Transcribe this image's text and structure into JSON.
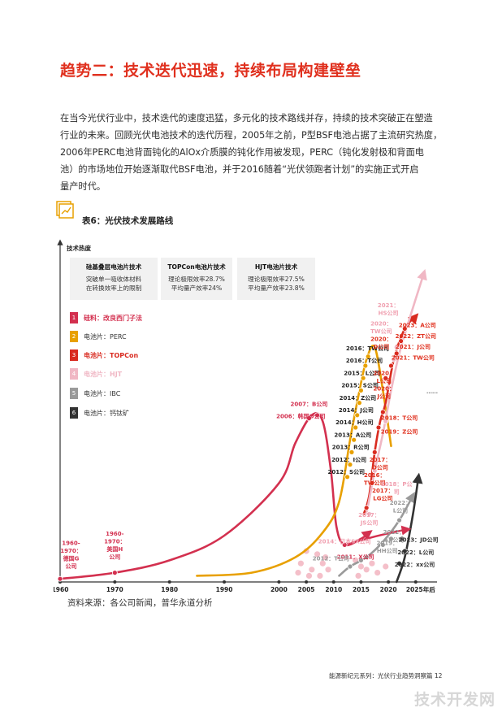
{
  "title": "趋势二：技术迭代迅速，持续布局构建壁垒",
  "paragraph_lines": [
    "在当今光伏行业中，技术迭代的速度迅猛，多元化的技术路线并存，持续的技术突破正在塑造",
    "行业的未来。回顾光伏电池技术的迭代历程，2005年之前，P型BSF电池占据了主流研究热度，",
    "2006年PERC电池背面钝化的AlOx介质膜的钝化作用被发现，PERC（钝化发射极和背面电",
    "池）的市场地位开始逐渐取代BSF电池，并于2016随着“光伏领跑者计划”的实施正式开启",
    "量产时代。"
  ],
  "figure_label": "表6：光伏技术发展路线",
  "source": "资料来源：各公司新闻，普华永道分析",
  "footer": "能源新纪元系列：光伏行业趋势洞察篇   12",
  "watermark": "技术开发网",
  "colors": {
    "accent": "#e0301e",
    "silicon": "#d3304f",
    "perc": "#e8a000",
    "topcon": "#d92b20",
    "hjt": "#f0b7c4",
    "ibc": "#9a9a9a",
    "perovskite": "#333333"
  },
  "chart_data": {
    "type": "line",
    "ylabel": "技术热度",
    "xlabel": "",
    "x_ticks": [
      "1960",
      "1970",
      "1980",
      "1990",
      "2000",
      "2005",
      "2010",
      "2015",
      "2020",
      "2025年后"
    ],
    "x_tick_values": [
      1960,
      1970,
      1980,
      1990,
      2000,
      2005,
      2010,
      2015,
      2020,
      2025
    ],
    "xlim": [
      1960,
      2028
    ],
    "ylim": [
      0,
      100
    ],
    "info_boxes": [
      {
        "header": "硅基叠层电池片技术",
        "lines": [
          "突破单一吸收体材料",
          "在转换效率上的限制"
        ]
      },
      {
        "header": "TOPCon电池片技术",
        "lines": [
          "理论极限效率28.7%",
          "平均量产效率24%"
        ]
      },
      {
        "header": "HJT电池片技术",
        "lines": [
          "理论极限效率27.5%",
          "平均量产效率23.8%"
        ]
      }
    ],
    "legend": [
      {
        "num": "1",
        "label": "硅料：改良西门子法",
        "color": "#d3304f",
        "highlight": true
      },
      {
        "num": "2",
        "label": "电池片：PERC",
        "color": "#e8a000",
        "highlight": false
      },
      {
        "num": "3",
        "label": "电池片：TOPCon",
        "color": "#d92b20",
        "highlight": true
      },
      {
        "num": "4",
        "label": "电池片：HJT",
        "color": "#f0b7c4",
        "highlight": true
      },
      {
        "num": "5",
        "label": "电池片：IBC",
        "color": "#9a9a9a",
        "highlight": false
      },
      {
        "num": "6",
        "label": "电池片：钙钛矿",
        "color": "#333333",
        "highlight": false
      }
    ],
    "series": [
      {
        "name": "硅料：改良西门子法",
        "color": "#d3304f",
        "x": [
          1960,
          1970,
          1980,
          1990,
          2000,
          2003,
          2006,
          2008,
          2009.5,
          2010.5,
          2012,
          2015,
          2016.5
        ],
        "y": [
          1,
          3,
          7,
          15,
          32,
          45,
          54,
          52,
          36,
          18,
          12,
          14,
          16
        ]
      },
      {
        "name": "电池片：PERC",
        "color": "#e8a000",
        "x": [
          1985,
          1995,
          2003,
          2008,
          2011,
          2013,
          2014.5,
          2016,
          2017.5,
          2019,
          2020.5
        ],
        "y": [
          2,
          3,
          8,
          16,
          26,
          46,
          60,
          72,
          76,
          62,
          44
        ]
      },
      {
        "name": "电池片：TOPCon",
        "color": "#d92b20",
        "x": [
          2015.5,
          2016.5,
          2017.5,
          2018.5,
          2019.5,
          2021,
          2023,
          2025
        ],
        "y": [
          22,
          28,
          42,
          52,
          58,
          72,
          82,
          86
        ]
      },
      {
        "name": "电池片：HJT",
        "color": "#f0b7c4",
        "x": [
          2016,
          2017.5,
          2019,
          2020.5,
          2022,
          2024,
          2026.5
        ],
        "y": [
          22,
          36,
          48,
          62,
          74,
          86,
          100
        ]
      },
      {
        "name": "电池片：IBC",
        "color": "#9a9a9a",
        "x": [
          2011,
          2013,
          2016,
          2019,
          2022,
          2024.5
        ],
        "y": [
          2,
          5,
          8,
          13,
          20,
          28
        ]
      },
      {
        "name": "电池片：钙钛矿",
        "color": "#333333",
        "x": [
          2021.5,
          2023,
          2024.5,
          2025.5
        ],
        "y": [
          0,
          8,
          22,
          34
        ]
      }
    ],
    "dots": {
      "silicon": [
        {
          "x": 1960,
          "y": 1
        },
        {
          "x": 1970,
          "y": 3
        },
        {
          "x": 2005.5,
          "y": 53
        },
        {
          "x": 2007,
          "y": 54
        },
        {
          "x": 2012,
          "y": 12
        }
      ],
      "perc": [
        {
          "x": 2012.5,
          "y": 34
        },
        {
          "x": 2013,
          "y": 38
        },
        {
          "x": 2013.3,
          "y": 42
        },
        {
          "x": 2013.7,
          "y": 46
        },
        {
          "x": 2014,
          "y": 50
        },
        {
          "x": 2014.3,
          "y": 54
        },
        {
          "x": 2014.7,
          "y": 58
        },
        {
          "x": 2015,
          "y": 62
        },
        {
          "x": 2015.4,
          "y": 66
        },
        {
          "x": 2015.8,
          "y": 70
        },
        {
          "x": 2016.3,
          "y": 73
        }
      ],
      "topcon": [
        {
          "x": 2016,
          "y": 24
        },
        {
          "x": 2017,
          "y": 32
        },
        {
          "x": 2017.5,
          "y": 42
        },
        {
          "x": 2018.2,
          "y": 50
        },
        {
          "x": 2019,
          "y": 55
        },
        {
          "x": 2019.5,
          "y": 66
        },
        {
          "x": 2020.5,
          "y": 70
        },
        {
          "x": 2021.5,
          "y": 74
        },
        {
          "x": 2022.3,
          "y": 78
        },
        {
          "x": 2023,
          "y": 82
        }
      ],
      "hjt": [
        {
          "x": 2016.5,
          "y": 22
        },
        {
          "x": 2017.5,
          "y": 36
        },
        {
          "x": 2019.5,
          "y": 52
        },
        {
          "x": 2020,
          "y": 63
        },
        {
          "x": 2021,
          "y": 72
        },
        {
          "x": 2021.5,
          "y": 76
        }
      ],
      "ibc": [
        {
          "x": 2013,
          "y": 5
        },
        {
          "x": 2015,
          "y": 7
        },
        {
          "x": 2016,
          "y": 8
        },
        {
          "x": 2019,
          "y": 12
        },
        {
          "x": 2020.5,
          "y": 14
        },
        {
          "x": 2022,
          "y": 20
        }
      ],
      "perovskite": [
        {
          "x": 2022,
          "y": 6
        },
        {
          "x": 2022.5,
          "y": 14
        },
        {
          "x": 2023,
          "y": 10
        }
      ],
      "scatter": [
        {
          "x": 2005,
          "y": 10
        },
        {
          "x": 2007,
          "y": 9
        },
        {
          "x": 2008,
          "y": 6
        },
        {
          "x": 2004,
          "y": 6
        },
        {
          "x": 2006,
          "y": 4
        },
        {
          "x": 2007.5,
          "y": 2
        },
        {
          "x": 2009,
          "y": 4
        },
        {
          "x": 2005.5,
          "y": 2
        },
        {
          "x": 2003.5,
          "y": 3
        },
        {
          "x": 2008.5,
          "y": 8
        },
        {
          "x": 2014,
          "y": 7
        },
        {
          "x": 2015,
          "y": 5
        },
        {
          "x": 2016,
          "y": 4
        },
        {
          "x": 2017,
          "y": 6
        },
        {
          "x": 2018,
          "y": 3
        },
        {
          "x": 2019.5,
          "y": 5
        },
        {
          "x": 2014.5,
          "y": 2
        }
      ]
    },
    "annotations": [
      {
        "text": "1960-",
        "x": 1962,
        "y": 12,
        "color": "#d3304f"
      },
      {
        "text": "1970：",
        "x": 1962,
        "y": 9.5,
        "color": "#d3304f"
      },
      {
        "text": "德国G",
        "x": 1962,
        "y": 7,
        "color": "#d3304f"
      },
      {
        "text": "公司",
        "x": 1962,
        "y": 4.5,
        "color": "#d3304f"
      },
      {
        "text": "1960-",
        "x": 1970,
        "y": 15,
        "color": "#d3304f"
      },
      {
        "text": "1970：",
        "x": 1970,
        "y": 12.5,
        "color": "#d3304f"
      },
      {
        "text": "美国H",
        "x": 1970,
        "y": 10,
        "color": "#d3304f"
      },
      {
        "text": "公司",
        "x": 1970,
        "y": 7.5,
        "color": "#d3304f"
      },
      {
        "text": "2007：B公司",
        "x": 2005.5,
        "y": 57,
        "color": "#d3304f"
      },
      {
        "text": "2006：韩国O公司",
        "x": 2004,
        "y": 53,
        "color": "#d3304f"
      },
      {
        "text": "2011：X公司",
        "x": 2014,
        "y": 7.5,
        "color": "#d3304f"
      },
      {
        "text": "2016：TW公司",
        "x": 2016.2,
        "y": 75,
        "color": "#222"
      },
      {
        "text": "2016：T公司",
        "x": 2015.6,
        "y": 71,
        "color": "#222"
      },
      {
        "text": "2015：L公司",
        "x": 2015.2,
        "y": 67,
        "color": "#222"
      },
      {
        "text": "2015：S公司",
        "x": 2014.8,
        "y": 63,
        "color": "#222"
      },
      {
        "text": "2014：Z公司",
        "x": 2014.4,
        "y": 59,
        "color": "#222"
      },
      {
        "text": "2014：J公司",
        "x": 2014.1,
        "y": 55,
        "color": "#222"
      },
      {
        "text": "2014：H公司",
        "x": 2013.8,
        "y": 51,
        "color": "#222"
      },
      {
        "text": "2013：A公司",
        "x": 2013.5,
        "y": 47,
        "color": "#222"
      },
      {
        "text": "2013：R公司",
        "x": 2013.1,
        "y": 43,
        "color": "#222"
      },
      {
        "text": "2012：I公司",
        "x": 2012.8,
        "y": 39,
        "color": "#222"
      },
      {
        "text": "2012：S公司",
        "x": 2012.3,
        "y": 35,
        "color": "#222"
      },
      {
        "text": "2017：",
        "x": 2018.5,
        "y": 39,
        "color": "#e0301e"
      },
      {
        "text": "D公司",
        "x": 2018.5,
        "y": 36.5,
        "color": "#e0301e"
      },
      {
        "text": "2016：",
        "x": 2017.5,
        "y": 34,
        "color": "#e0301e"
      },
      {
        "text": "TW公司",
        "x": 2017.5,
        "y": 31.5,
        "color": "#e0301e"
      },
      {
        "text": "2018：P公",
        "x": 2021.5,
        "y": 31,
        "color": "#f0a0b0"
      },
      {
        "text": "司",
        "x": 2021.5,
        "y": 28.5,
        "color": "#f0a0b0"
      },
      {
        "text": "2017：",
        "x": 2019,
        "y": 29,
        "color": "#e0301e"
      },
      {
        "text": "LG公司",
        "x": 2019,
        "y": 26.5,
        "color": "#e0301e"
      },
      {
        "text": "2017：",
        "x": 2016.5,
        "y": 21,
        "color": "#f0a0b0"
      },
      {
        "text": "JS公司",
        "x": 2016.5,
        "y": 18.5,
        "color": "#f0a0b0"
      },
      {
        "text": "2014：日本SX公司",
        "x": 2012,
        "y": 12.5,
        "color": "#f0a0b0"
      },
      {
        "text": "2012：T公司",
        "x": 2009.5,
        "y": 7,
        "color": "#999"
      },
      {
        "text": "2022：",
        "x": 2022.2,
        "y": 25,
        "color": "#999"
      },
      {
        "text": "L公司",
        "x": 2022.2,
        "y": 22.5,
        "color": "#999"
      },
      {
        "text": "2022：",
        "x": 2021,
        "y": 15.5,
        "color": "#999"
      },
      {
        "text": "AX公司",
        "x": 2021,
        "y": 13,
        "color": "#999"
      },
      {
        "text": "2019：",
        "x": 2019.8,
        "y": 12,
        "color": "#999"
      },
      {
        "text": "HH公司",
        "x": 2019.8,
        "y": 9.5,
        "color": "#999"
      },
      {
        "text": "2023：JD公司",
        "x": 2025.5,
        "y": 13,
        "color": "#333"
      },
      {
        "text": "2022：L公司",
        "x": 2025,
        "y": 9,
        "color": "#333"
      },
      {
        "text": "2022：xx公司",
        "x": 2024.8,
        "y": 5,
        "color": "#333"
      },
      {
        "text": "2021：",
        "x": 2020,
        "y": 89,
        "color": "#f0a0b0"
      },
      {
        "text": "HS公司",
        "x": 2020,
        "y": 86.5,
        "color": "#f0a0b0"
      },
      {
        "text": "2020：",
        "x": 2018.7,
        "y": 83,
        "color": "#f0a0b0"
      },
      {
        "text": "TW公司",
        "x": 2018.7,
        "y": 80.5,
        "color": "#f0a0b0"
      },
      {
        "text": "2020：",
        "x": 2018.7,
        "y": 78,
        "color": "#e0301e"
      },
      {
        "text": "D公司",
        "x": 2018.7,
        "y": 75.5,
        "color": "#e0301e"
      },
      {
        "text": "2023：A公司",
        "x": 2025.3,
        "y": 82.5,
        "color": "#e0301e"
      },
      {
        "text": "2022：ZT公司",
        "x": 2025,
        "y": 79,
        "color": "#e0301e"
      },
      {
        "text": "2021：J公司",
        "x": 2024.5,
        "y": 75.5,
        "color": "#e0301e"
      },
      {
        "text": "2021：TW公司",
        "x": 2024.5,
        "y": 72,
        "color": "#e0301e"
      },
      {
        "text": "2020：",
        "x": 2019.2,
        "y": 67,
        "color": "#e0301e"
      },
      {
        "text": "L公司",
        "x": 2019.2,
        "y": 64.5,
        "color": "#e0301e"
      },
      {
        "text": "2020：",
        "x": 2019.2,
        "y": 62,
        "color": "#e0301e"
      },
      {
        "text": "J公司",
        "x": 2019.2,
        "y": 59.5,
        "color": "#e0301e"
      },
      {
        "text": "2018：T公司",
        "x": 2022,
        "y": 52.5,
        "color": "#e0301e"
      },
      {
        "text": "2019：Z公司",
        "x": 2022,
        "y": 48,
        "color": "#e0301e"
      },
      {
        "text": "……",
        "x": 2028,
        "y": 61,
        "color": "#888"
      }
    ]
  }
}
